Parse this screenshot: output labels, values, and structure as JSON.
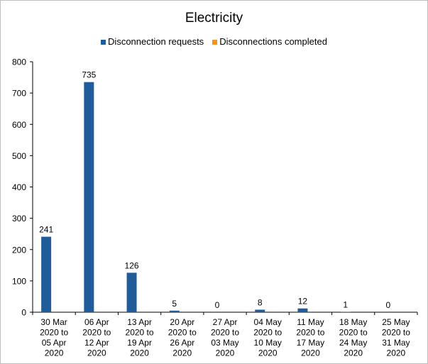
{
  "chart_data": {
    "type": "bar",
    "title": "Electricity",
    "categories": [
      "30 Mar 2020 to 05 Apr 2020",
      "06 Apr 2020 to 12 Apr 2020",
      "13 Apr 2020 to 19 Apr 2020",
      "20 Apr 2020 to 26 Apr 2020",
      "27 Apr 2020 to 03 May 2020",
      "04 May 2020 to 10 May 2020",
      "11 May 2020 to 17 May 2020",
      "18 May 2020 to 24 May 2020",
      "25 May 2020 to 31 May 2020"
    ],
    "category_lines": [
      [
        "30 Mar",
        "2020 to",
        "05 Apr",
        "2020"
      ],
      [
        "06 Apr",
        "2020 to",
        "12 Apr",
        "2020"
      ],
      [
        "13 Apr",
        "2020 to",
        "19 Apr",
        "2020"
      ],
      [
        "20 Apr",
        "2020 to",
        "26 Apr",
        "2020"
      ],
      [
        "27 Apr",
        "2020 to",
        "03 May",
        "2020"
      ],
      [
        "04 May",
        "2020 to",
        "10 May",
        "2020"
      ],
      [
        "11 May",
        "2020 to",
        "17 May",
        "2020"
      ],
      [
        "18 May",
        "2020 to",
        "24 May",
        "2020"
      ],
      [
        "25 May",
        "2020 to",
        "31 May",
        "2020"
      ]
    ],
    "series": [
      {
        "name": "Disconnection requests",
        "color": "#1f5c99",
        "values": [
          241,
          735,
          126,
          5,
          0,
          8,
          12,
          1,
          0
        ],
        "data_labels": [
          "241",
          "735",
          "126",
          "5",
          "0",
          "8",
          "12",
          "1",
          "0"
        ]
      },
      {
        "name": "Disconnections completed",
        "color": "#f7941d",
        "values": [
          0,
          0,
          0,
          0,
          0,
          0,
          0,
          0,
          0
        ]
      }
    ],
    "ylim": [
      0,
      800
    ],
    "yticks": [
      "0",
      "100",
      "200",
      "300",
      "400",
      "500",
      "600",
      "700",
      "800"
    ],
    "xlabel": "",
    "ylabel": "",
    "grid": false,
    "legend_position": "top"
  }
}
